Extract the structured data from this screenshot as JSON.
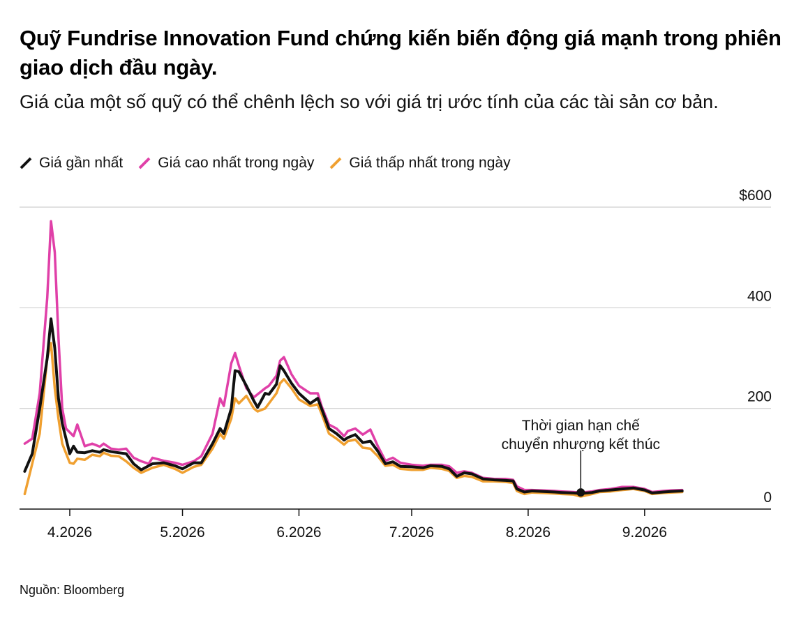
{
  "title": "Quỹ Fundrise Innovation Fund chứng kiến biến động giá mạnh trong phiên giao dịch đầu ngày.",
  "subtitle": "Giá của một số quỹ có thể chênh lệch so với giá trị ước tính của các tài sản cơ bản.",
  "source": "Nguồn: Bloomberg",
  "chart_data": {
    "type": "line",
    "title": "Quỹ Fundrise Innovation Fund chứng kiến biến động giá mạnh trong phiên giao dịch đầu ngày.",
    "subtitle": "Giá của một số quỹ có thể chênh lệch so với giá trị ước tính của các tài sản cơ bản.",
    "xlabel": "",
    "ylabel": "",
    "x_axis_type": "date",
    "xlim": [
      "2026-03-19",
      "2026-09-30"
    ],
    "ylim": [
      0,
      600
    ],
    "y_ticks": [
      {
        "value": 0,
        "label": "0"
      },
      {
        "value": 200,
        "label": "200"
      },
      {
        "value": 400,
        "label": "400"
      },
      {
        "value": 600,
        "label": "$600"
      }
    ],
    "x_ticks": [
      {
        "date": "2026-04-01",
        "label": "4.2026"
      },
      {
        "date": "2026-05-01",
        "label": "5.2026"
      },
      {
        "date": "2026-06-01",
        "label": "6.2026"
      },
      {
        "date": "2026-07-01",
        "label": "7.2026"
      },
      {
        "date": "2026-08-01",
        "label": "8.2026"
      },
      {
        "date": "2026-09-01",
        "label": "9.2026"
      }
    ],
    "grid": true,
    "legend_position": "top-left",
    "series": [
      {
        "name": "Giá gần nhất",
        "color": "#111111",
        "points": [
          [
            "2026-03-20",
            75
          ],
          [
            "2026-03-22",
            110
          ],
          [
            "2026-03-24",
            200
          ],
          [
            "2026-03-26",
            300
          ],
          [
            "2026-03-27",
            378
          ],
          [
            "2026-03-28",
            320
          ],
          [
            "2026-03-29",
            220
          ],
          [
            "2026-03-30",
            170
          ],
          [
            "2026-04-01",
            110
          ],
          [
            "2026-04-02",
            125
          ],
          [
            "2026-04-03",
            113
          ],
          [
            "2026-04-05",
            112
          ],
          [
            "2026-04-07",
            116
          ],
          [
            "2026-04-09",
            113
          ],
          [
            "2026-04-10",
            118
          ],
          [
            "2026-04-12",
            114
          ],
          [
            "2026-04-14",
            112
          ],
          [
            "2026-04-16",
            110
          ],
          [
            "2026-04-18",
            90
          ],
          [
            "2026-04-20",
            78
          ],
          [
            "2026-04-23",
            90
          ],
          [
            "2026-04-26",
            92
          ],
          [
            "2026-04-29",
            86
          ],
          [
            "2026-05-01",
            80
          ],
          [
            "2026-05-04",
            92
          ],
          [
            "2026-05-06",
            92
          ],
          [
            "2026-05-09",
            130
          ],
          [
            "2026-05-11",
            160
          ],
          [
            "2026-05-12",
            150
          ],
          [
            "2026-05-14",
            200
          ],
          [
            "2026-05-15",
            275
          ],
          [
            "2026-05-16",
            273
          ],
          [
            "2026-05-18",
            245
          ],
          [
            "2026-05-20",
            215
          ],
          [
            "2026-05-21",
            202
          ],
          [
            "2026-05-23",
            230
          ],
          [
            "2026-05-24",
            228
          ],
          [
            "2026-05-26",
            248
          ],
          [
            "2026-05-27",
            285
          ],
          [
            "2026-05-28",
            275
          ],
          [
            "2026-05-30",
            250
          ],
          [
            "2026-06-01",
            230
          ],
          [
            "2026-06-04",
            210
          ],
          [
            "2026-06-06",
            220
          ],
          [
            "2026-06-07",
            200
          ],
          [
            "2026-06-09",
            160
          ],
          [
            "2026-06-11",
            150
          ],
          [
            "2026-06-13",
            137
          ],
          [
            "2026-06-14",
            142
          ],
          [
            "2026-06-16",
            148
          ],
          [
            "2026-06-18",
            132
          ],
          [
            "2026-06-20",
            135
          ],
          [
            "2026-06-22",
            115
          ],
          [
            "2026-06-24",
            90
          ],
          [
            "2026-06-26",
            94
          ],
          [
            "2026-06-28",
            85
          ],
          [
            "2026-07-01",
            84
          ],
          [
            "2026-07-04",
            82
          ],
          [
            "2026-07-06",
            86
          ],
          [
            "2026-07-09",
            85
          ],
          [
            "2026-07-11",
            80
          ],
          [
            "2026-07-13",
            65
          ],
          [
            "2026-07-15",
            72
          ],
          [
            "2026-07-17",
            70
          ],
          [
            "2026-07-20",
            60
          ],
          [
            "2026-07-23",
            58
          ],
          [
            "2026-07-26",
            57
          ],
          [
            "2026-07-28",
            56
          ],
          [
            "2026-07-29",
            40
          ],
          [
            "2026-07-31",
            34
          ],
          [
            "2026-08-02",
            36
          ],
          [
            "2026-08-05",
            35
          ],
          [
            "2026-08-08",
            34
          ],
          [
            "2026-08-10",
            33
          ],
          [
            "2026-08-13",
            32
          ],
          [
            "2026-08-15",
            31
          ],
          [
            "2026-08-18",
            33
          ],
          [
            "2026-08-20",
            36
          ],
          [
            "2026-08-23",
            38
          ],
          [
            "2026-08-26",
            40
          ],
          [
            "2026-08-29",
            42
          ],
          [
            "2026-09-01",
            38
          ],
          [
            "2026-09-03",
            32
          ],
          [
            "2026-09-06",
            34
          ],
          [
            "2026-09-08",
            35
          ],
          [
            "2026-09-11",
            36
          ]
        ]
      },
      {
        "name": "Giá cao nhất trong ngày",
        "color": "#e040a8",
        "points": [
          [
            "2026-03-20",
            130
          ],
          [
            "2026-03-22",
            140
          ],
          [
            "2026-03-24",
            230
          ],
          [
            "2026-03-26",
            420
          ],
          [
            "2026-03-27",
            572
          ],
          [
            "2026-03-28",
            510
          ],
          [
            "2026-03-29",
            340
          ],
          [
            "2026-03-30",
            200
          ],
          [
            "2026-03-31",
            160
          ],
          [
            "2026-04-02",
            145
          ],
          [
            "2026-04-03",
            168
          ],
          [
            "2026-04-05",
            125
          ],
          [
            "2026-04-07",
            130
          ],
          [
            "2026-04-09",
            124
          ],
          [
            "2026-04-10",
            130
          ],
          [
            "2026-04-12",
            120
          ],
          [
            "2026-04-14",
            118
          ],
          [
            "2026-04-16",
            120
          ],
          [
            "2026-04-18",
            102
          ],
          [
            "2026-04-20",
            95
          ],
          [
            "2026-04-22",
            90
          ],
          [
            "2026-04-23",
            102
          ],
          [
            "2026-04-26",
            96
          ],
          [
            "2026-04-29",
            92
          ],
          [
            "2026-05-01",
            88
          ],
          [
            "2026-05-04",
            95
          ],
          [
            "2026-05-06",
            105
          ],
          [
            "2026-05-09",
            150
          ],
          [
            "2026-05-11",
            220
          ],
          [
            "2026-05-12",
            205
          ],
          [
            "2026-05-14",
            290
          ],
          [
            "2026-05-15",
            310
          ],
          [
            "2026-05-16",
            285
          ],
          [
            "2026-05-18",
            240
          ],
          [
            "2026-05-20",
            222
          ],
          [
            "2026-05-23",
            240
          ],
          [
            "2026-05-24",
            245
          ],
          [
            "2026-05-26",
            265
          ],
          [
            "2026-05-27",
            295
          ],
          [
            "2026-05-28",
            302
          ],
          [
            "2026-05-30",
            268
          ],
          [
            "2026-06-01",
            245
          ],
          [
            "2026-06-04",
            230
          ],
          [
            "2026-06-06",
            230
          ],
          [
            "2026-06-07",
            205
          ],
          [
            "2026-06-09",
            168
          ],
          [
            "2026-06-11",
            160
          ],
          [
            "2026-06-13",
            145
          ],
          [
            "2026-06-14",
            155
          ],
          [
            "2026-06-16",
            160
          ],
          [
            "2026-06-18",
            148
          ],
          [
            "2026-06-20",
            158
          ],
          [
            "2026-06-22",
            125
          ],
          [
            "2026-06-24",
            96
          ],
          [
            "2026-06-26",
            102
          ],
          [
            "2026-06-28",
            92
          ],
          [
            "2026-07-01",
            88
          ],
          [
            "2026-07-04",
            86
          ],
          [
            "2026-07-06",
            88
          ],
          [
            "2026-07-09",
            88
          ],
          [
            "2026-07-11",
            85
          ],
          [
            "2026-07-13",
            72
          ],
          [
            "2026-07-15",
            75
          ],
          [
            "2026-07-17",
            72
          ],
          [
            "2026-07-20",
            62
          ],
          [
            "2026-07-23",
            60
          ],
          [
            "2026-07-26",
            60
          ],
          [
            "2026-07-28",
            58
          ],
          [
            "2026-07-29",
            45
          ],
          [
            "2026-07-31",
            38
          ],
          [
            "2026-08-02",
            38
          ],
          [
            "2026-08-05",
            37
          ],
          [
            "2026-08-08",
            36
          ],
          [
            "2026-08-10",
            35
          ],
          [
            "2026-08-13",
            34
          ],
          [
            "2026-08-15",
            33
          ],
          [
            "2026-08-18",
            35
          ],
          [
            "2026-08-20",
            38
          ],
          [
            "2026-08-23",
            40
          ],
          [
            "2026-08-26",
            44
          ],
          [
            "2026-08-29",
            44
          ],
          [
            "2026-09-01",
            40
          ],
          [
            "2026-09-03",
            34
          ],
          [
            "2026-09-06",
            36
          ],
          [
            "2026-09-08",
            37
          ],
          [
            "2026-09-11",
            38
          ]
        ]
      },
      {
        "name": "Giá thấp nhất trong ngày",
        "color": "#f0a030",
        "points": [
          [
            "2026-03-20",
            30
          ],
          [
            "2026-03-22",
            90
          ],
          [
            "2026-03-24",
            150
          ],
          [
            "2026-03-26",
            300
          ],
          [
            "2026-03-27",
            330
          ],
          [
            "2026-03-28",
            240
          ],
          [
            "2026-03-29",
            180
          ],
          [
            "2026-03-30",
            130
          ],
          [
            "2026-04-01",
            92
          ],
          [
            "2026-04-02",
            90
          ],
          [
            "2026-04-03",
            100
          ],
          [
            "2026-04-05",
            98
          ],
          [
            "2026-04-07",
            108
          ],
          [
            "2026-04-09",
            105
          ],
          [
            "2026-04-10",
            112
          ],
          [
            "2026-04-12",
            106
          ],
          [
            "2026-04-14",
            105
          ],
          [
            "2026-04-16",
            95
          ],
          [
            "2026-04-18",
            82
          ],
          [
            "2026-04-20",
            72
          ],
          [
            "2026-04-23",
            82
          ],
          [
            "2026-04-26",
            88
          ],
          [
            "2026-04-29",
            80
          ],
          [
            "2026-05-01",
            72
          ],
          [
            "2026-05-04",
            84
          ],
          [
            "2026-05-06",
            88
          ],
          [
            "2026-05-09",
            120
          ],
          [
            "2026-05-11",
            150
          ],
          [
            "2026-05-12",
            140
          ],
          [
            "2026-05-14",
            180
          ],
          [
            "2026-05-15",
            220
          ],
          [
            "2026-05-16",
            210
          ],
          [
            "2026-05-18",
            225
          ],
          [
            "2026-05-20",
            200
          ],
          [
            "2026-05-21",
            194
          ],
          [
            "2026-05-23",
            200
          ],
          [
            "2026-05-24",
            210
          ],
          [
            "2026-05-26",
            230
          ],
          [
            "2026-05-27",
            250
          ],
          [
            "2026-05-28",
            258
          ],
          [
            "2026-05-30",
            240
          ],
          [
            "2026-06-01",
            218
          ],
          [
            "2026-06-04",
            205
          ],
          [
            "2026-06-06",
            208
          ],
          [
            "2026-06-07",
            190
          ],
          [
            "2026-06-09",
            150
          ],
          [
            "2026-06-11",
            140
          ],
          [
            "2026-06-13",
            128
          ],
          [
            "2026-06-14",
            135
          ],
          [
            "2026-06-16",
            138
          ],
          [
            "2026-06-18",
            122
          ],
          [
            "2026-06-20",
            120
          ],
          [
            "2026-06-22",
            105
          ],
          [
            "2026-06-24",
            86
          ],
          [
            "2026-06-26",
            88
          ],
          [
            "2026-06-28",
            80
          ],
          [
            "2026-07-01",
            78
          ],
          [
            "2026-07-04",
            78
          ],
          [
            "2026-07-06",
            82
          ],
          [
            "2026-07-09",
            80
          ],
          [
            "2026-07-11",
            76
          ],
          [
            "2026-07-13",
            62
          ],
          [
            "2026-07-15",
            66
          ],
          [
            "2026-07-17",
            64
          ],
          [
            "2026-07-20",
            55
          ],
          [
            "2026-07-23",
            55
          ],
          [
            "2026-07-26",
            54
          ],
          [
            "2026-07-28",
            52
          ],
          [
            "2026-07-29",
            36
          ],
          [
            "2026-07-31",
            30
          ],
          [
            "2026-08-02",
            33
          ],
          [
            "2026-08-05",
            32
          ],
          [
            "2026-08-08",
            31
          ],
          [
            "2026-08-10",
            30
          ],
          [
            "2026-08-13",
            29
          ],
          [
            "2026-08-15",
            25
          ],
          [
            "2026-08-18",
            30
          ],
          [
            "2026-08-20",
            34
          ],
          [
            "2026-08-23",
            35
          ],
          [
            "2026-08-26",
            38
          ],
          [
            "2026-08-29",
            40
          ],
          [
            "2026-09-01",
            36
          ],
          [
            "2026-09-03",
            30
          ],
          [
            "2026-09-06",
            32
          ],
          [
            "2026-09-08",
            33
          ],
          [
            "2026-09-11",
            34
          ]
        ]
      }
    ],
    "annotations": [
      {
        "lines": [
          "Thời gian hạn chế",
          "chuyển nhượng kết thúc"
        ],
        "date": "2026-08-15",
        "value": 33
      }
    ]
  }
}
